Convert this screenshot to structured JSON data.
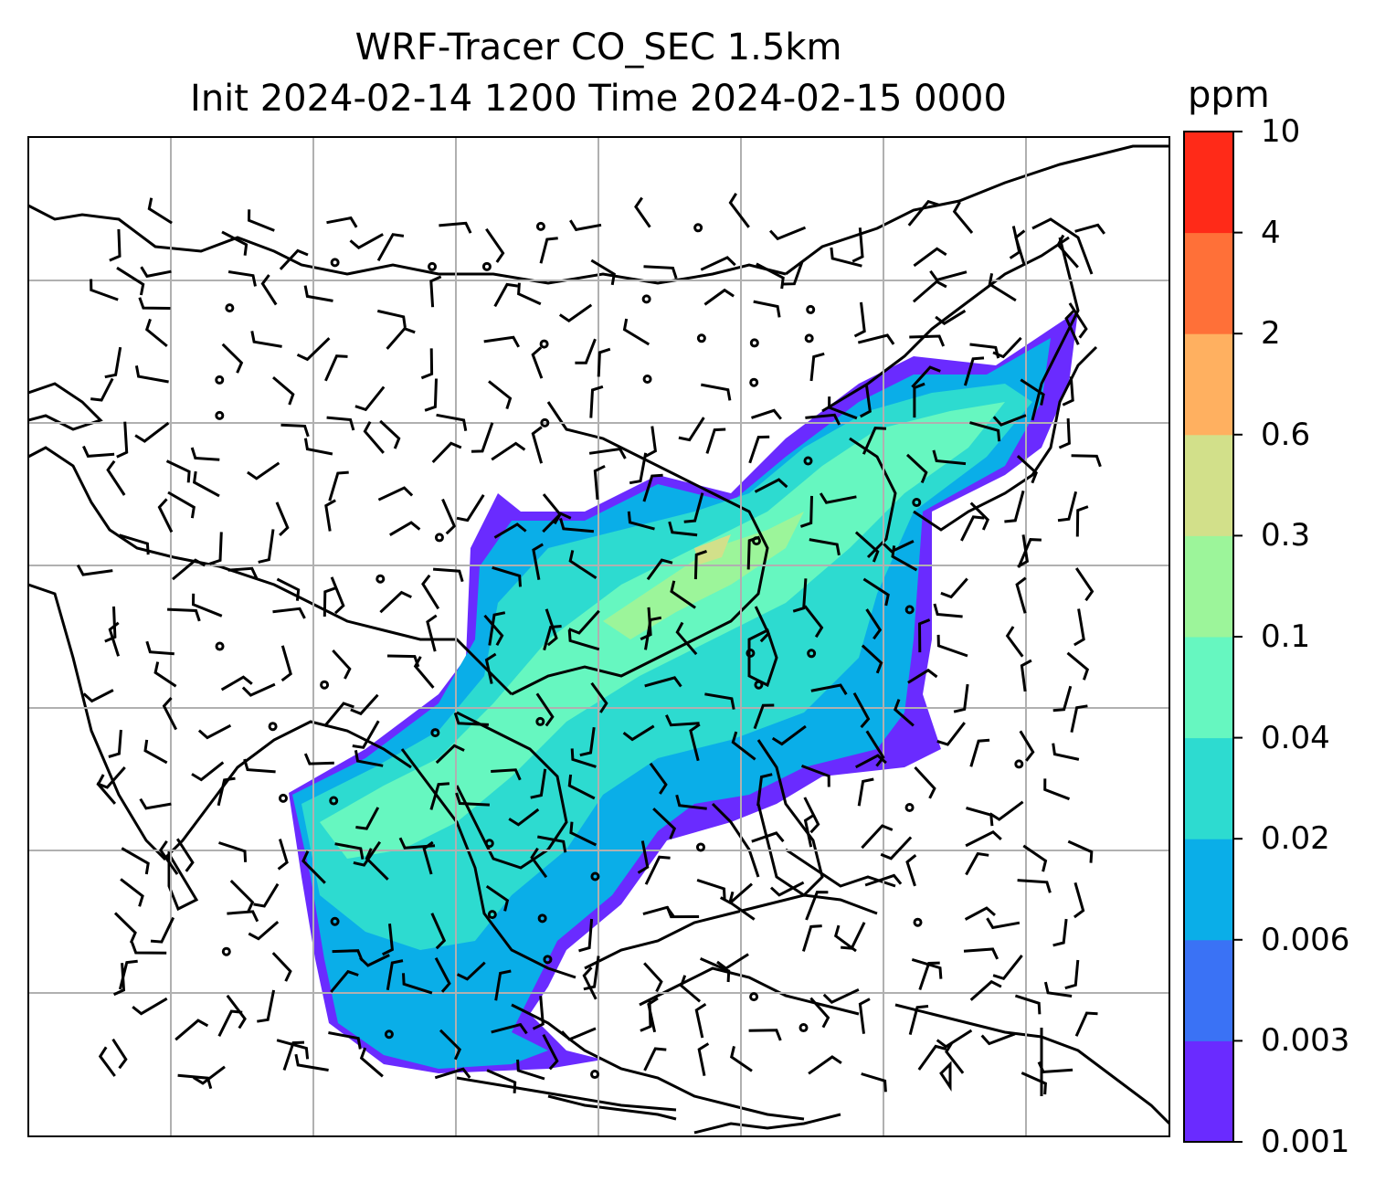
{
  "chart_data": {
    "type": "heatmap",
    "title": "WRF-Tracer CO_SEC 1.5km",
    "subtitle": "Init 2024-02-14 1200 Time 2024-02-15 0000",
    "colorbar": {
      "unit": "ppm",
      "levels": [
        "0.001",
        "0.003",
        "0.006",
        "0.02",
        "0.04",
        "0.1",
        "0.3",
        "0.6",
        "2",
        "4",
        "10"
      ],
      "colors": [
        "#6a2bff",
        "#3a72f5",
        "#0aaee8",
        "#2ddbd0",
        "#66f7c0",
        "#9cf59a",
        "#d2e08a",
        "#ffb060",
        "#ff7038",
        "#ff2a18"
      ]
    },
    "map": {
      "grid": true,
      "plume_colors": [
        "#6a2bff",
        "#0aaee8",
        "#2ddbd0",
        "#66f7c0",
        "#9cf59a"
      ],
      "wind_barbs": true
    }
  }
}
